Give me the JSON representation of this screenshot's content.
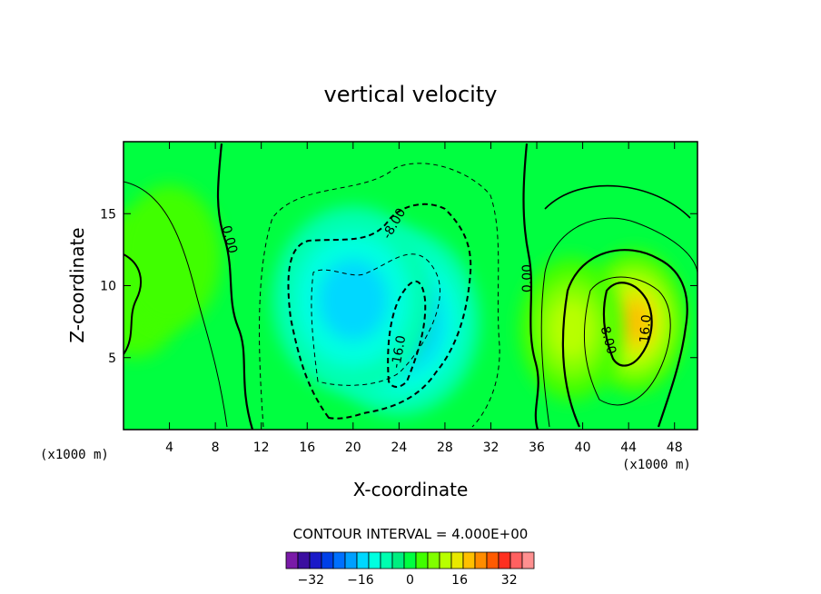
{
  "chart_data": {
    "type": "heatmap",
    "title": "vertical velocity",
    "xlabel": "X-coordinate",
    "ylabel": "Z-coordinate",
    "xlim": [
      0,
      50
    ],
    "ylim": [
      0,
      20
    ],
    "x_ticks": [
      4,
      8,
      12,
      16,
      20,
      24,
      28,
      32,
      36,
      40,
      44,
      48
    ],
    "y_ticks": [
      5,
      10,
      15
    ],
    "x_unit": "(x1000 m)",
    "y_unit": "(x1000 m)",
    "contour_interval_text": "CONTOUR INTERVAL = 4.000E+00",
    "colorbar": {
      "labels": [
        "-32",
        "-16",
        "0",
        "16",
        "32"
      ],
      "label_values": [
        -32,
        -16,
        0,
        16,
        32
      ],
      "levels": [
        -40,
        -36,
        -32,
        -28,
        -24,
        -20,
        -16,
        -12,
        -8,
        -4,
        0,
        4,
        8,
        12,
        16,
        20,
        24,
        28,
        32,
        36,
        40
      ],
      "colors": [
        "#7a1aa8",
        "#3b0ea0",
        "#1a1ac8",
        "#0040e8",
        "#0070ff",
        "#00a0ff",
        "#00d8ff",
        "#00ffe0",
        "#00ffb0",
        "#00ee80",
        "#00ff40",
        "#40ff00",
        "#80ff00",
        "#b8ff00",
        "#e8e800",
        "#ffc000",
        "#ff8c00",
        "#ff5a00",
        "#ff3020",
        "#ff6060",
        "#ff9090"
      ]
    },
    "contour_labels": [
      "0.00",
      "0.00",
      "-8.00",
      "-16.0",
      "8.00",
      "16.0"
    ],
    "features": [
      {
        "kind": "downdraft",
        "x": 24,
        "z": 7.5,
        "peak": -18
      },
      {
        "kind": "downdraft",
        "x": 20,
        "z": 9,
        "peak": -13
      },
      {
        "kind": "updraft",
        "x": 44.5,
        "z": 7.5,
        "peak": 22
      },
      {
        "kind": "updraft",
        "x": 39,
        "z": 7,
        "peak": 12
      },
      {
        "kind": "updraft",
        "x": 1,
        "z": 10,
        "peak": 7
      },
      {
        "kind": "updraft",
        "x": 4,
        "z": 12,
        "peak": 4
      }
    ]
  }
}
